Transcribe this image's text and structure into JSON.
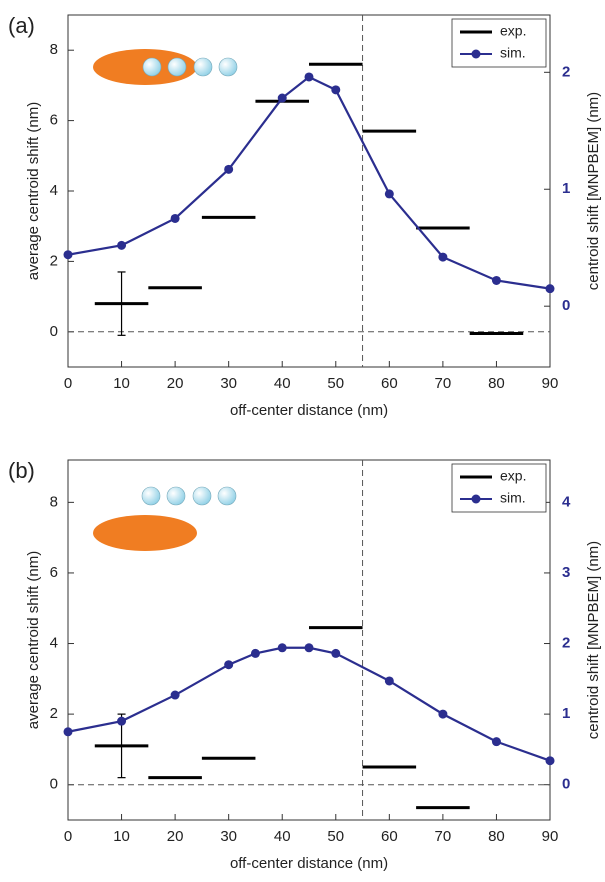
{
  "chart_data": [
    {
      "type": "line",
      "panel_label": "(a)",
      "xlabel": "off-center distance (nm)",
      "ylabel": "average centroid shift (nm)",
      "y2label": "centroid shift [MNPBEM] (nm)",
      "xlim": [
        0,
        90
      ],
      "xticks": [
        0,
        10,
        20,
        30,
        40,
        50,
        60,
        70,
        80,
        90
      ],
      "ylim": [
        -1,
        9
      ],
      "yticks": [
        0,
        2,
        4,
        6,
        8
      ],
      "y2lim": [
        -0.52,
        2.49
      ],
      "y2ticks": [
        0,
        1,
        2
      ],
      "vline": 55,
      "hline": 0,
      "legend": "upper right",
      "series": [
        {
          "name": "exp.",
          "color": "#000000",
          "style": "step",
          "bar_width": 10,
          "x": [
            10,
            20,
            30,
            40,
            50,
            60,
            70,
            80
          ],
          "values": [
            0.8,
            1.25,
            3.25,
            6.55,
            7.6,
            5.7,
            2.95,
            -0.05
          ],
          "errors": [
            0.9,
            null,
            null,
            null,
            null,
            null,
            null,
            null
          ]
        },
        {
          "name": "sim.",
          "color": "#2b2e8f",
          "axis": "y2",
          "x": [
            0,
            10,
            20,
            30,
            40,
            45,
            50,
            60,
            70,
            80,
            90
          ],
          "values": [
            0.44,
            0.52,
            0.75,
            1.17,
            1.78,
            1.96,
            1.85,
            0.96,
            0.42,
            0.22,
            0.15
          ]
        }
      ]
    },
    {
      "type": "line",
      "panel_label": "(b)",
      "xlabel": "off-center distance (nm)",
      "ylabel": "average centroid shift (nm)",
      "y2label": "centroid shift [MNPBEM] (nm)",
      "xlim": [
        0,
        90
      ],
      "xticks": [
        0,
        10,
        20,
        30,
        40,
        50,
        60,
        70,
        80,
        90
      ],
      "ylim": [
        -1,
        9.2
      ],
      "yticks": [
        0,
        2,
        4,
        6,
        8
      ],
      "y2lim": [
        -0.5,
        4.6
      ],
      "y2ticks": [
        0,
        1,
        2,
        3,
        4
      ],
      "vline": 55,
      "hline": 0,
      "legend": "upper right",
      "series": [
        {
          "name": "exp.",
          "color": "#000000",
          "style": "step",
          "bar_width": 10,
          "x": [
            10,
            20,
            30,
            50,
            60,
            70
          ],
          "values": [
            1.1,
            0.2,
            0.75,
            4.45,
            0.5,
            -0.65
          ],
          "errors": [
            0.9,
            null,
            null,
            null,
            null,
            null
          ]
        },
        {
          "name": "sim.",
          "color": "#2b2e8f",
          "axis": "y2",
          "x": [
            0,
            10,
            20,
            30,
            35,
            40,
            45,
            50,
            60,
            70,
            80,
            90
          ],
          "values": [
            0.75,
            0.9,
            1.27,
            1.7,
            1.86,
            1.94,
            1.94,
            1.86,
            1.47,
            1.0,
            0.61,
            0.34
          ]
        }
      ]
    }
  ]
}
